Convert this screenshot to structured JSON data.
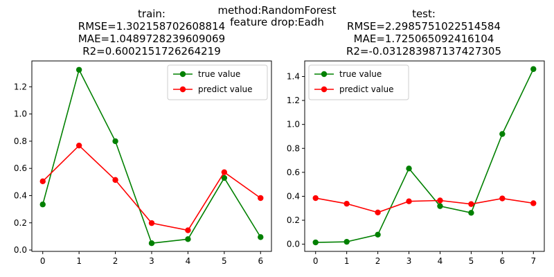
{
  "figure": {
    "suptitle_lines": [
      "method:RandomForest",
      "feature drop:Eadh"
    ]
  },
  "chart_data": [
    {
      "type": "line",
      "title_lines": [
        "train:",
        "RMSE=1.302158702608814",
        "MAE=1.0489728239609069",
        "R2=0.6002151726264219"
      ],
      "xlabel": "",
      "ylabel": "",
      "x": [
        0,
        1,
        2,
        3,
        4,
        5,
        6
      ],
      "xlim": [
        -0.3,
        6.3
      ],
      "ylim": [
        -0.01,
        1.39
      ],
      "xticks": [
        0,
        1,
        2,
        3,
        4,
        5,
        6
      ],
      "yticks": [
        0.0,
        0.2,
        0.4,
        0.6,
        0.8,
        1.0,
        1.2
      ],
      "ytick_labels": [
        "0.0",
        "0.2",
        "0.4",
        "0.6",
        "0.8",
        "1.0",
        "1.2"
      ],
      "grid": false,
      "legend_position": "top-right",
      "series": [
        {
          "name": "true value",
          "color": "#008000",
          "values": [
            0.335,
            1.325,
            0.8,
            0.05,
            0.08,
            0.53,
            0.095
          ]
        },
        {
          "name": "predict value",
          "color": "#ff0000",
          "values": [
            0.505,
            0.768,
            0.515,
            0.198,
            0.145,
            0.572,
            0.382
          ]
        }
      ]
    },
    {
      "type": "line",
      "title_lines": [
        "test:",
        "RMSE=2.2985751022514584",
        "MAE=1.725065092416104",
        "R2=-0.031283987137427305"
      ],
      "xlabel": "",
      "ylabel": "",
      "x": [
        0,
        1,
        2,
        3,
        4,
        5,
        6,
        7
      ],
      "xlim": [
        -0.35,
        7.35
      ],
      "ylim": [
        -0.06,
        1.53
      ],
      "xticks": [
        0,
        1,
        2,
        3,
        4,
        5,
        6,
        7
      ],
      "yticks": [
        0.0,
        0.2,
        0.4,
        0.6,
        0.8,
        1.0,
        1.2,
        1.4
      ],
      "ytick_labels": [
        "0.0",
        "0.2",
        "0.4",
        "0.6",
        "0.8",
        "1.0",
        "1.2",
        "1.4"
      ],
      "grid": false,
      "legend_position": "top-left",
      "series": [
        {
          "name": "true value",
          "color": "#008000",
          "values": [
            0.015,
            0.02,
            0.08,
            0.632,
            0.318,
            0.262,
            0.92,
            1.462
          ]
        },
        {
          "name": "predict value",
          "color": "#ff0000",
          "values": [
            0.385,
            0.338,
            0.265,
            0.358,
            0.365,
            0.335,
            0.382,
            0.342
          ]
        }
      ]
    }
  ]
}
